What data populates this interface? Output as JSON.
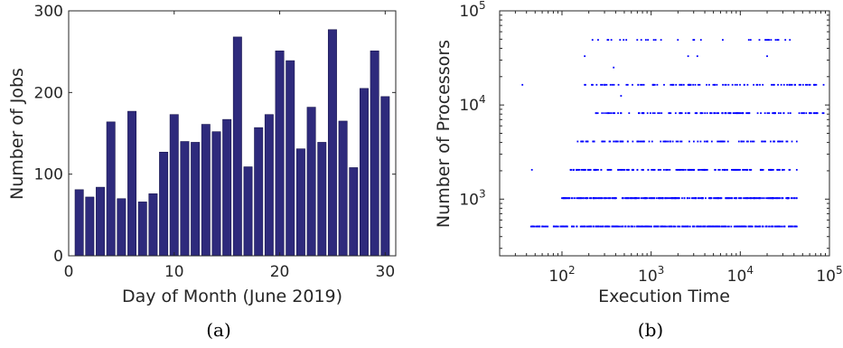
{
  "chart_data": [
    {
      "type": "bar",
      "xlabel": "Day of Month (June 2019)",
      "ylabel": "Number of Jobs",
      "caption": "(a)",
      "xlim": [
        0,
        31
      ],
      "ylim": [
        0,
        300
      ],
      "xticks": [
        0,
        10,
        20,
        30
      ],
      "yticks": [
        0,
        100,
        200,
        300
      ],
      "bar_color": "#2e2a7c",
      "categories": [
        1,
        2,
        3,
        4,
        5,
        6,
        7,
        8,
        9,
        10,
        11,
        12,
        13,
        14,
        15,
        16,
        17,
        18,
        19,
        20,
        21,
        22,
        23,
        24,
        25,
        26,
        27,
        28,
        29,
        30
      ],
      "values": [
        81,
        72,
        84,
        164,
        70,
        177,
        66,
        76,
        127,
        173,
        140,
        139,
        161,
        152,
        167,
        268,
        109,
        157,
        173,
        251,
        239,
        131,
        182,
        139,
        277,
        165,
        108,
        205,
        251,
        195
      ]
    },
    {
      "type": "scatter",
      "xlabel": "Execution Time",
      "ylabel": "Number of Processors",
      "caption": "(b)",
      "xscale": "log",
      "yscale": "log",
      "xlim": [
        20,
        100000
      ],
      "ylim": [
        250,
        100000
      ],
      "xtick_exponents": [
        2,
        3,
        4,
        5
      ],
      "ytick_exponents": [
        3,
        4,
        5
      ],
      "tick_base": "10",
      "point_color": "#0000ff",
      "levels": [
        {
          "y": 512,
          "x_min": 45,
          "x_max": 43000
        },
        {
          "y": 1024,
          "x_min": 100,
          "x_max": 43000
        },
        {
          "y": 2048,
          "x_min": 125,
          "x_max": 43000
        },
        {
          "y": 4096,
          "x_min": 150,
          "x_max": 43000
        },
        {
          "y": 8192,
          "x_min": 240,
          "x_max": 86000
        },
        {
          "y": 16384,
          "x_min": 180,
          "x_max": 86000
        },
        {
          "y": 49152,
          "x_min": 220,
          "x_max": 32000
        }
      ],
      "points": [
        {
          "x": 36,
          "y": 16384
        },
        {
          "x": 46,
          "y": 2048
        },
        {
          "x": 380,
          "y": 25000
        },
        {
          "x": 180,
          "y": 33000
        },
        {
          "x": 460,
          "y": 12500
        },
        {
          "x": 2600,
          "y": 33000
        },
        {
          "x": 3300,
          "y": 33000
        },
        {
          "x": 20000,
          "y": 33000
        },
        {
          "x": 36000,
          "y": 49152
        }
      ]
    }
  ]
}
